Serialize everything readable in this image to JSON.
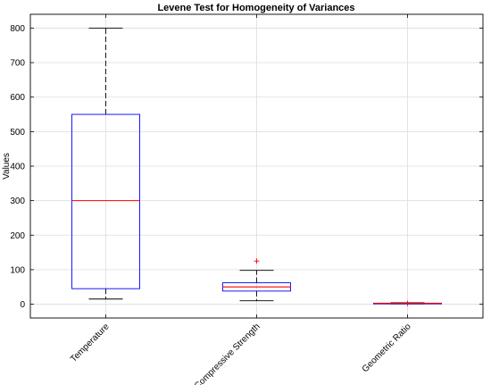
{
  "chart_data": {
    "type": "box",
    "title": "Levene Test for Homogeneity of Variances",
    "xlabel": "",
    "ylabel": "Values",
    "ylim": [
      -40,
      840
    ],
    "yticks": [
      0,
      100,
      200,
      300,
      400,
      500,
      600,
      700,
      800
    ],
    "grid": true,
    "categories": [
      "Temperature",
      "Compressive Strength",
      "Geometric Ratio"
    ],
    "boxes": [
      {
        "category": "Temperature",
        "whisker_low": 15,
        "q1": 45,
        "median": 300,
        "q3": 550,
        "whisker_high": 800,
        "outliers": []
      },
      {
        "category": "Compressive Strength",
        "whisker_low": 10,
        "q1": 38,
        "median": 50,
        "q3": 62,
        "whisker_high": 98,
        "outliers": [
          125
        ]
      },
      {
        "category": "Geometric Ratio",
        "whisker_low": 1,
        "q1": 2,
        "median": 2.5,
        "q3": 3,
        "whisker_high": 4,
        "outliers": [
          2.5
        ]
      }
    ],
    "colors": {
      "box": "#0000ff",
      "median": "#ff0000",
      "whisker": "#000000",
      "outlier": "#ff0000",
      "grid": "#dcdcdc"
    }
  }
}
